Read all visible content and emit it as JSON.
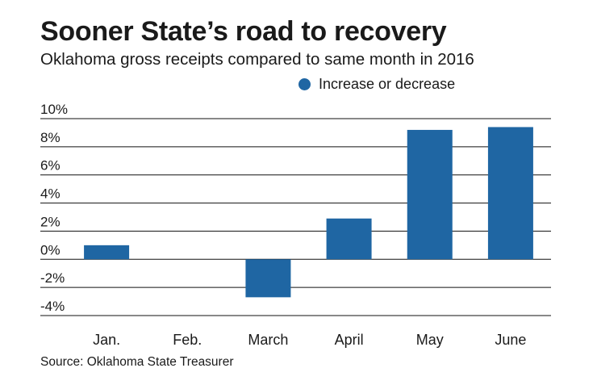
{
  "header": {
    "title": "Sooner State’s road to recovery",
    "subtitle": "Oklahoma gross receipts compared to same month in 2016"
  },
  "legend": {
    "label": "Increase or decrease",
    "color": "#1f66a3"
  },
  "footer": {
    "source": "Source: Oklahoma State Treasurer"
  },
  "chart_data": {
    "type": "bar",
    "categories": [
      "Jan.",
      "Feb.",
      "March",
      "April",
      "May",
      "June"
    ],
    "series": [
      {
        "name": "Increase or decrease",
        "values": [
          1.0,
          null,
          -2.7,
          2.9,
          9.2,
          9.4
        ]
      }
    ],
    "ylim": [
      -4,
      10
    ],
    "yticks": [
      10,
      8,
      6,
      4,
      2,
      0,
      -2,
      -4
    ],
    "ytick_labels": [
      "10%",
      "8%",
      "6%",
      "4%",
      "2%",
      "0%",
      "-2%",
      "-4%"
    ],
    "grid": true,
    "legend_position": "top-right",
    "bar_color": "#1f66a3"
  }
}
